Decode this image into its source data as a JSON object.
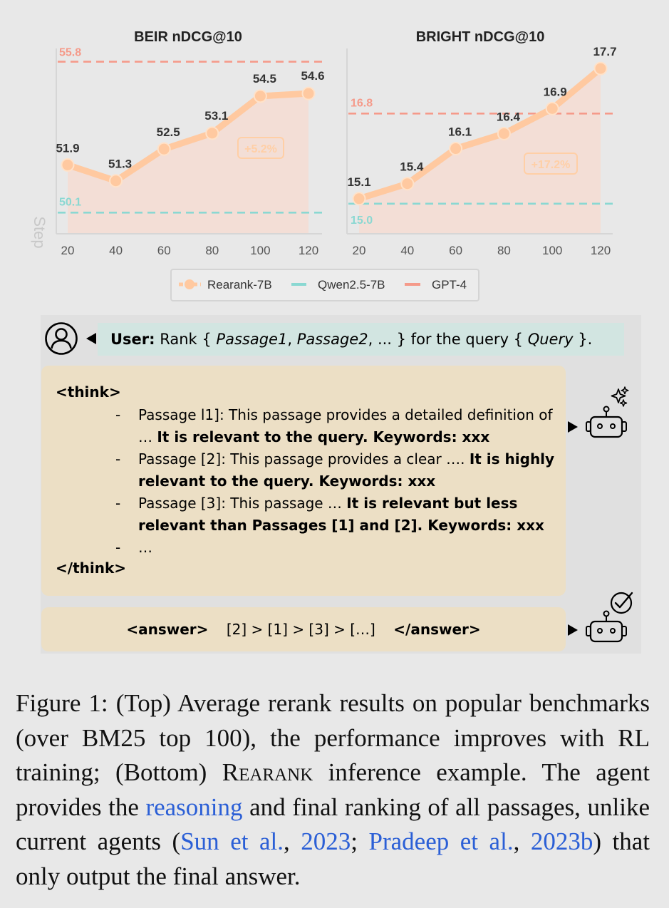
{
  "chart_data": [
    {
      "type": "line",
      "title": "BEIR nDCG@10",
      "xlabel": "Step",
      "x": [
        20,
        40,
        60,
        80,
        100,
        120
      ],
      "ylim": [
        49.3,
        56.3
      ],
      "series": [
        {
          "name": "Rearank-7B",
          "values": [
            51.9,
            51.3,
            52.5,
            53.1,
            54.5,
            54.6
          ]
        }
      ],
      "reference_lines": [
        {
          "name": "GPT-4",
          "value": 55.8,
          "label": "55.8"
        },
        {
          "name": "Qwen2.5-7B",
          "value": 50.1,
          "label": "50.1"
        }
      ],
      "point_labels": [
        "51.9",
        "51.3",
        "52.5",
        "53.1",
        "54.5",
        "54.6"
      ],
      "annotation": "+5.2%"
    },
    {
      "type": "line",
      "title": "BRIGHT nDCG@10",
      "x": [
        20,
        40,
        60,
        80,
        100,
        120
      ],
      "ylim": [
        14.4,
        18.1
      ],
      "series": [
        {
          "name": "Rearank-7B",
          "values": [
            15.1,
            15.4,
            16.1,
            16.4,
            16.9,
            17.7
          ]
        }
      ],
      "reference_lines": [
        {
          "name": "GPT-4",
          "value": 16.8,
          "label": "16.8"
        },
        {
          "name": "Qwen2.5-7B",
          "value": 15.0,
          "label": "15.0"
        }
      ],
      "point_labels": [
        "15.1",
        "15.4",
        "16.1",
        "16.4",
        "16.9",
        "17.7"
      ],
      "annotation": "+17.2%"
    }
  ],
  "legend": {
    "placement": "bottom-center",
    "items": [
      {
        "label": "Rearank-7B",
        "color": "#ffc9a0"
      },
      {
        "label": "Qwen2.5-7B",
        "color": "#8ad8d2"
      },
      {
        "label": "GPT-4",
        "color": "#f59a8a"
      }
    ]
  },
  "colors": {
    "rearank": "#ffc9a0",
    "gpt4": "#f59a8a",
    "qwen": "#8ad8d2",
    "fill": "#f4dcd2",
    "user_bar": "#d2e5e1",
    "think_box": "#ecdfc5",
    "link": "#2b5fd6"
  },
  "icons": {
    "user": "user-circle-icon",
    "robot_thinking": "robot-sparkle-icon",
    "robot_answer": "robot-check-icon"
  },
  "dialog": {
    "user_label": "User:",
    "user_text_1": " Rank { ",
    "user_p1": "Passage1",
    "user_sep1": ", ",
    "user_p2": "Passage2",
    "user_text_2": ", ... } for the query { ",
    "user_query": "Query",
    "user_text_3": " }.",
    "think_open": "<think>",
    "think_close": "</think>",
    "items": [
      {
        "dash": "-",
        "plain": "Passage l1]: This passage provides a detailed definition of … ",
        "bold": "It is relevant to the query. Keywords: xxx"
      },
      {
        "dash": "-",
        "plain": "Passage [2]: This passage provides a clear …. ",
        "bold": "It is highly relevant to the query. Keywords: xxx"
      },
      {
        "dash": "-",
        "plain": "Passage [3]: This passage … ",
        "bold": "It is relevant but less relevant than Passages [1] and [2]. Keywords: xxx"
      },
      {
        "dash": "-",
        "plain": "…",
        "bold": ""
      }
    ],
    "answer_open": "<answer>",
    "answer_text": "[2] > [1] > [3] > […]",
    "answer_close": "</answer>"
  },
  "caption": {
    "t1": "Figure 1: (Top) Average rerank results on popular benchmarks (over BM25 top 100), the performance improves with RL training; (Bottom) ",
    "sc": "Rearank",
    "t2": " inference example. The agent provides the ",
    "link1": "reasoning",
    "t3": " and final ranking of all passages, unlike current agents (",
    "link2": "Sun et al.",
    "t4": ", ",
    "link3": "2023",
    "t5": "; ",
    "link4": "Pradeep et al.",
    "t6": ", ",
    "link5": "2023b",
    "t7": ") that only output the final answer."
  }
}
